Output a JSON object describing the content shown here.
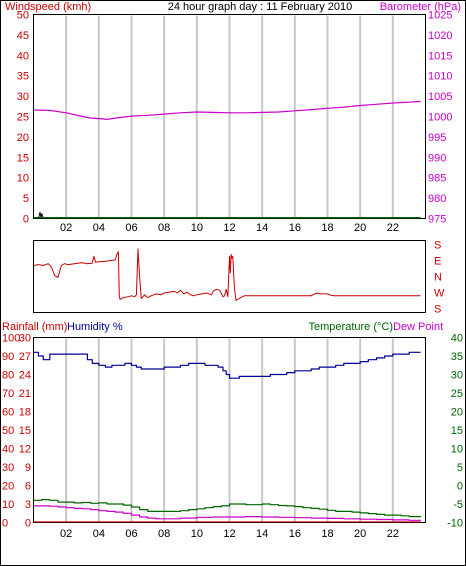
{
  "title": "24 hour graph day : 11 February 2010",
  "colors": {
    "wind": "#cc0000",
    "barometer": "#cc00cc",
    "direction": "#cc0000",
    "rain": "#cc0000",
    "humidity": "#000099",
    "temperature": "#006600",
    "dewpoint": "#cc00cc",
    "grid": "#c8c8c8"
  },
  "chart_data": [
    {
      "type": "line",
      "name": "wind-barometer",
      "left_axis_label": "Windspeed (kmh)",
      "right_axis_label": "Barometer (hPa)",
      "x_ticks": [
        "02",
        "04",
        "06",
        "08",
        "10",
        "12",
        "14",
        "16",
        "18",
        "20",
        "22"
      ],
      "x_range": [
        0,
        24
      ],
      "left_range": [
        0,
        50
      ],
      "left_ticks": [
        0,
        5,
        10,
        15,
        20,
        25,
        30,
        35,
        40,
        45,
        50
      ],
      "right_range": [
        975,
        1025
      ],
      "right_ticks": [
        975,
        980,
        985,
        990,
        995,
        1000,
        1005,
        1010,
        1015,
        1020,
        1025
      ],
      "grid": "vertical",
      "series": [
        {
          "axis": "right",
          "x": [
            0,
            1,
            2,
            3,
            3.5,
            4,
            4.5,
            5,
            6,
            7,
            8,
            9,
            10,
            11,
            12,
            13,
            14,
            15,
            16,
            17,
            18,
            19,
            20,
            21,
            22,
            23,
            23.7
          ],
          "y": [
            1001.6,
            1001.5,
            1000.9,
            1000.0,
            999.6,
            999.5,
            999.3,
            999.6,
            1000.1,
            1000.3,
            1000.6,
            1000.9,
            1001.1,
            1001.0,
            1000.9,
            1000.9,
            1001.0,
            1001.1,
            1001.4,
            1001.7,
            1002.0,
            1002.3,
            1002.7,
            1003.0,
            1003.3,
            1003.5,
            1003.7
          ]
        },
        {
          "axis": "left",
          "x": [
            0,
            0.3,
            0.4,
            0.45,
            0.5,
            0.6,
            0.7,
            23.7
          ],
          "y": [
            0,
            0,
            1.5,
            0.2,
            1.2,
            0.1,
            0,
            0
          ]
        },
        {
          "axis": "left",
          "x": [
            0,
            23.7
          ],
          "y": [
            0.2,
            0.2
          ]
        }
      ]
    },
    {
      "type": "line",
      "name": "wind-direction",
      "right_axis_ticks": [
        "S",
        "E",
        "N",
        "W",
        "S"
      ],
      "y_range": [
        180,
        540
      ],
      "grid": "none",
      "series": [
        {
          "x": [
            0,
            0.3,
            0.6,
            0.9,
            1.1,
            1.3,
            1.5,
            1.7,
            1.9,
            2.1,
            2.4,
            2.7,
            3.0,
            3.3,
            3.6,
            3.7,
            3.8,
            4.0,
            4.3,
            4.6,
            4.8,
            5.0,
            5.1,
            5.2,
            5.25,
            5.3,
            5.5,
            5.8,
            6.0,
            6.2,
            6.3,
            6.4,
            6.5,
            6.6,
            6.7,
            6.8,
            6.9,
            7.0,
            7.2,
            7.5,
            7.8,
            8.0,
            8.3,
            8.6,
            8.8,
            9.0,
            9.2,
            9.4,
            9.6,
            9.8,
            10.0,
            10.3,
            10.6,
            10.9,
            11.0,
            11.2,
            11.4,
            11.6,
            11.7,
            11.8,
            11.9,
            12.0,
            12.05,
            12.1,
            12.15,
            12.2,
            12.3,
            12.4,
            12.5,
            12.6,
            12.7,
            12.8,
            12.9,
            13.0,
            13.5,
            14.0,
            15.0,
            16.0,
            17.0,
            17.2,
            17.4,
            17.6,
            18.0,
            18.2,
            18.4,
            19.0,
            20.0,
            21.0,
            22.0,
            23.0,
            23.7
          ],
          "y": [
            420,
            425,
            420,
            430,
            410,
            365,
            355,
            420,
            430,
            425,
            428,
            432,
            435,
            430,
            433,
            470,
            438,
            440,
            442,
            445,
            448,
            450,
            480,
            495,
            250,
            235,
            245,
            250,
            255,
            250,
            260,
            510,
            350,
            240,
            250,
            260,
            250,
            245,
            255,
            265,
            260,
            270,
            275,
            280,
            270,
            285,
            265,
            275,
            260,
            255,
            260,
            265,
            270,
            260,
            280,
            290,
            285,
            250,
            255,
            290,
            250,
            470,
            380,
            480,
            460,
            470,
            300,
            230,
            235,
            240,
            245,
            250,
            255,
            255,
            255,
            255,
            255,
            255,
            255,
            265,
            270,
            265,
            265,
            258,
            255,
            255,
            255,
            255,
            255,
            255,
            255
          ]
        }
      ]
    },
    {
      "type": "line",
      "name": "rain-humidity-temperature",
      "left_axis_label_rain": "Rainfall (mm)",
      "left_axis_label_humidity": "Humidity %",
      "right_axis_label": "Temperature (°C)",
      "right_axis_label_2": "Dew Point",
      "x_ticks": [
        "02",
        "04",
        "06",
        "08",
        "10",
        "12",
        "14",
        "16",
        "18",
        "20",
        "22"
      ],
      "x_range": [
        0,
        24
      ],
      "humidity_range": [
        0,
        100
      ],
      "humidity_ticks": [
        0,
        10,
        20,
        30,
        40,
        50,
        60,
        70,
        80,
        90,
        100
      ],
      "rain_range": [
        0,
        30
      ],
      "rain_ticks": [
        0,
        3,
        6,
        9,
        12,
        15,
        18,
        21,
        24,
        27,
        30
      ],
      "temp_range": [
        -10,
        40
      ],
      "temp_ticks": [
        -10,
        -5,
        0,
        5,
        10,
        15,
        20,
        25,
        30,
        35,
        40
      ],
      "grid": "vertical",
      "series": [
        {
          "axis": "humidity",
          "x": [
            0,
            0.3,
            0.6,
            1.0,
            1.5,
            2.0,
            2.5,
            3.0,
            3.3,
            3.6,
            4.0,
            4.4,
            4.8,
            5.2,
            5.6,
            6.0,
            6.3,
            6.6,
            7.0,
            7.5,
            8.0,
            8.5,
            9.0,
            9.5,
            10.0,
            10.5,
            11.0,
            11.3,
            11.6,
            11.8,
            12.0,
            12.3,
            12.6,
            13.0,
            13.5,
            14.0,
            14.5,
            15.0,
            15.5,
            16.0,
            16.5,
            17.0,
            17.5,
            18.0,
            18.5,
            19.0,
            19.5,
            20.0,
            20.5,
            21.0,
            21.5,
            22.0,
            22.5,
            23.0,
            23.7
          ],
          "y": [
            92,
            90,
            88,
            91,
            91,
            91,
            91,
            91,
            88,
            86,
            85,
            84,
            85,
            85,
            86,
            85,
            84,
            83,
            83,
            83,
            84,
            84,
            85,
            86,
            86,
            85,
            85,
            84,
            82,
            80,
            78,
            78,
            79,
            79,
            79,
            79,
            80,
            80,
            81,
            82,
            82,
            83,
            84,
            84,
            85,
            86,
            86,
            87,
            88,
            89,
            90,
            91,
            91,
            92,
            92
          ]
        },
        {
          "axis": "temp",
          "x": [
            0,
            0.5,
            1.0,
            1.5,
            2.0,
            2.5,
            3.0,
            3.5,
            4.0,
            4.5,
            5.0,
            5.5,
            6.0,
            6.5,
            7.0,
            7.5,
            8.0,
            8.5,
            9.0,
            9.5,
            10.0,
            10.5,
            11.0,
            11.5,
            12.0,
            12.5,
            13.0,
            13.5,
            14.0,
            14.5,
            15.0,
            15.5,
            16.0,
            16.5,
            17.0,
            17.5,
            18.0,
            18.5,
            19.0,
            19.5,
            20.0,
            20.5,
            21.0,
            21.5,
            22.0,
            22.5,
            23.0,
            23.7
          ],
          "y": [
            -4.0,
            -3.8,
            -4.0,
            -4.5,
            -4.5,
            -4.7,
            -4.6,
            -4.8,
            -4.7,
            -5.0,
            -5.0,
            -5.3,
            -5.8,
            -6.5,
            -7.0,
            -7.0,
            -7.0,
            -7.0,
            -6.8,
            -6.5,
            -6.3,
            -6.0,
            -5.7,
            -5.5,
            -5.0,
            -5.0,
            -5.2,
            -5.2,
            -5.0,
            -5.2,
            -5.4,
            -5.5,
            -5.7,
            -6.0,
            -6.2,
            -6.4,
            -6.7,
            -7.0,
            -7.0,
            -7.2,
            -7.4,
            -7.6,
            -7.8,
            -8.0,
            -8.0,
            -8.2,
            -8.4,
            -8.5
          ]
        },
        {
          "axis": "temp",
          "x": [
            0,
            0.5,
            1.0,
            1.5,
            2.0,
            2.5,
            3.0,
            3.5,
            4.0,
            4.5,
            5.0,
            5.5,
            6.0,
            6.5,
            7.0,
            7.5,
            8.0,
            9.0,
            10.0,
            11.0,
            12.0,
            13.0,
            14.0,
            15.0,
            16.0,
            17.0,
            18.0,
            19.0,
            20.0,
            21.0,
            22.0,
            23.0,
            23.7
          ],
          "y": [
            -5.5,
            -5.5,
            -5.6,
            -5.8,
            -6.0,
            -6.2,
            -6.3,
            -6.5,
            -6.8,
            -7.0,
            -7.2,
            -7.5,
            -8.0,
            -8.5,
            -8.8,
            -9.0,
            -9.0,
            -8.8,
            -8.6,
            -8.5,
            -8.5,
            -8.4,
            -8.5,
            -8.6,
            -8.7,
            -8.8,
            -8.9,
            -9.0,
            -9.1,
            -9.2,
            -9.3,
            -9.4,
            -9.5
          ]
        },
        {
          "axis": "rain",
          "x": [
            0,
            23.7
          ],
          "y": [
            0.1,
            0.1
          ]
        }
      ]
    }
  ]
}
